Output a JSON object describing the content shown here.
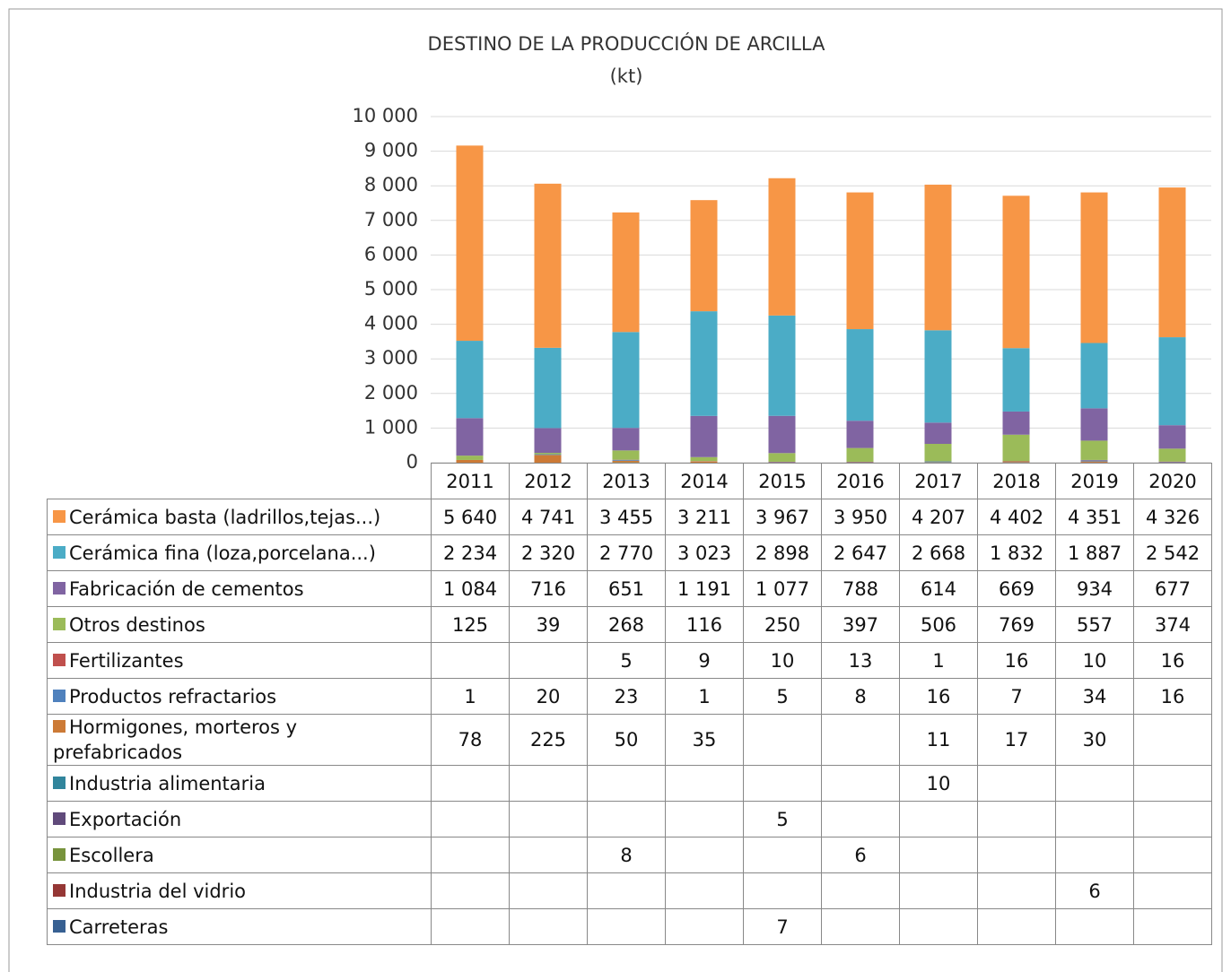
{
  "chart_data": {
    "type": "stacked_bar",
    "title": "DESTINO DE LA PRODUCCIÓN DE ARCILLA",
    "subtitle": "(kt)",
    "categories": [
      "2011",
      "2012",
      "2013",
      "2014",
      "2015",
      "2016",
      "2017",
      "2018",
      "2019",
      "2020"
    ],
    "ylim": [
      0,
      10000
    ],
    "yticks": [
      0,
      {
        "value": 1000,
        "label": "1 000"
      },
      {
        "value": 2000,
        "label": "2 000"
      },
      {
        "value": 3000,
        "label": "3 000"
      },
      {
        "value": 4000,
        "label": "4 000"
      },
      {
        "value": 5000,
        "label": "5 000"
      },
      {
        "value": 6000,
        "label": "6 000"
      },
      {
        "value": 7000,
        "label": "7 000"
      },
      {
        "value": 8000,
        "label": "8 000"
      },
      {
        "value": 9000,
        "label": "9 000"
      },
      {
        "value": 10000,
        "label": "10 000"
      }
    ],
    "grid": true,
    "series": [
      {
        "name": "Cerámica basta (ladrillos,tejas...)",
        "color": "#f79646",
        "values": [
          5640,
          4741,
          3455,
          3211,
          3967,
          3950,
          4207,
          4402,
          4351,
          4326
        ],
        "value_labels": [
          "5 640",
          "4 741",
          "3 455",
          "3 211",
          "3 967",
          "3 950",
          "4 207",
          "4 402",
          "4 351",
          "4 326"
        ]
      },
      {
        "name": "Cerámica fina (loza,porcelana...)",
        "color": "#4bacc6",
        "values": [
          2234,
          2320,
          2770,
          3023,
          2898,
          2647,
          2668,
          1832,
          1887,
          2542
        ],
        "value_labels": [
          "2 234",
          "2 320",
          "2 770",
          "3 023",
          "2 898",
          "2 647",
          "2 668",
          "1 832",
          "1 887",
          "2 542"
        ]
      },
      {
        "name": "Fabricación de cementos",
        "color": "#8064a2",
        "values": [
          1084,
          716,
          651,
          1191,
          1077,
          788,
          614,
          669,
          934,
          677
        ],
        "value_labels": [
          "1 084",
          "716",
          "651",
          "1 191",
          "1 077",
          "788",
          "614",
          "669",
          "934",
          "677"
        ]
      },
      {
        "name": "Otros destinos",
        "color": "#9bbb59",
        "values": [
          125,
          39,
          268,
          116,
          250,
          397,
          506,
          769,
          557,
          374
        ]
      },
      {
        "name": "Fertilizantes",
        "color": "#c0504d",
        "values": [
          null,
          null,
          5,
          9,
          10,
          13,
          1,
          16,
          10,
          16
        ]
      },
      {
        "name": "Productos refractarios",
        "color": "#4f81bd",
        "values": [
          1,
          20,
          23,
          1,
          5,
          8,
          16,
          7,
          34,
          16
        ]
      },
      {
        "name": "Hormigones, morteros y prefabricados",
        "color": "#cc7a36",
        "values": [
          78,
          225,
          50,
          35,
          null,
          null,
          11,
          17,
          30,
          null
        ]
      },
      {
        "name": "Industria alimentaria",
        "color": "#31859c",
        "values": [
          null,
          null,
          null,
          null,
          null,
          null,
          10,
          null,
          null,
          null
        ]
      },
      {
        "name": "Exportación",
        "color": "#604a7b",
        "values": [
          null,
          null,
          null,
          null,
          5,
          null,
          null,
          null,
          null,
          null
        ]
      },
      {
        "name": "Escollera",
        "color": "#77933c",
        "values": [
          null,
          null,
          8,
          null,
          null,
          6,
          null,
          null,
          null,
          null
        ]
      },
      {
        "name": "Industria del vidrio",
        "color": "#953735",
        "values": [
          null,
          null,
          null,
          null,
          null,
          null,
          null,
          null,
          6,
          null
        ]
      },
      {
        "name": "Carreteras",
        "color": "#376092",
        "values": [
          null,
          null,
          null,
          null,
          7,
          null,
          null,
          null,
          null,
          null
        ]
      }
    ]
  }
}
